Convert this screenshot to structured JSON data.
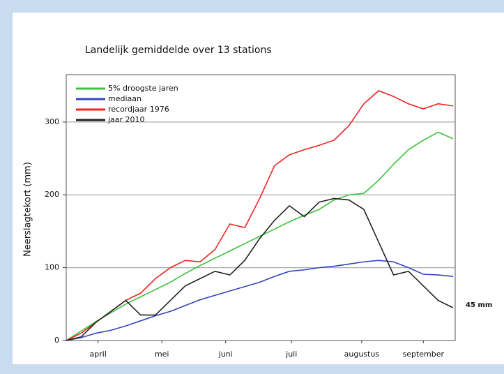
{
  "chart_data": {
    "type": "line",
    "title": "Landelijk gemiddelde over 13 stations",
    "ylabel": "Neerslagtekort (mm)",
    "annotation": "45 mm",
    "x": [
      0,
      7,
      14,
      21,
      28,
      35,
      42,
      49,
      56,
      63,
      70,
      77,
      84,
      91,
      98,
      105,
      112,
      119,
      126,
      133,
      140,
      147,
      154,
      161,
      168,
      175,
      182
    ],
    "xlim": [
      0,
      183
    ],
    "xticks": [
      {
        "value": 15,
        "label": "april"
      },
      {
        "value": 45,
        "label": "mei"
      },
      {
        "value": 75,
        "label": "juni"
      },
      {
        "value": 106,
        "label": "juli"
      },
      {
        "value": 139,
        "label": "augustus"
      },
      {
        "value": 168,
        "label": "september"
      }
    ],
    "ylim": [
      0,
      365
    ],
    "yticks": [
      0,
      100,
      200,
      300
    ],
    "grid": true,
    "legend": "upper left",
    "series": [
      {
        "name": "5% droogste jaren",
        "color": "#3cc23c",
        "values": [
          0,
          13,
          26,
          38,
          50,
          60,
          70,
          80,
          92,
          103,
          113,
          123,
          133,
          143,
          153,
          163,
          172,
          180,
          193,
          200,
          202,
          220,
          242,
          262,
          275,
          286,
          277
        ]
      },
      {
        "name": "mediaan",
        "color": "#3344bb",
        "values": [
          0,
          4,
          10,
          14,
          20,
          27,
          34,
          40,
          48,
          56,
          62,
          68,
          74,
          80,
          88,
          95,
          97,
          100,
          102,
          105,
          108,
          110,
          108,
          100,
          91,
          90,
          88
        ]
      },
      {
        "name": "recordjaar 1976",
        "color": "#ee2222",
        "values": [
          0,
          10,
          25,
          40,
          55,
          65,
          85,
          100,
          110,
          108,
          125,
          160,
          155,
          195,
          240,
          255,
          262,
          268,
          275,
          295,
          325,
          343,
          335,
          325,
          318,
          325,
          322
        ]
      },
      {
        "name": "jaar 2010",
        "color": "#222222",
        "values": [
          0,
          5,
          25,
          40,
          55,
          35,
          35,
          55,
          75,
          85,
          95,
          90,
          110,
          140,
          165,
          185,
          170,
          190,
          195,
          193,
          180,
          135,
          90,
          95,
          75,
          55,
          45
        ]
      }
    ]
  }
}
